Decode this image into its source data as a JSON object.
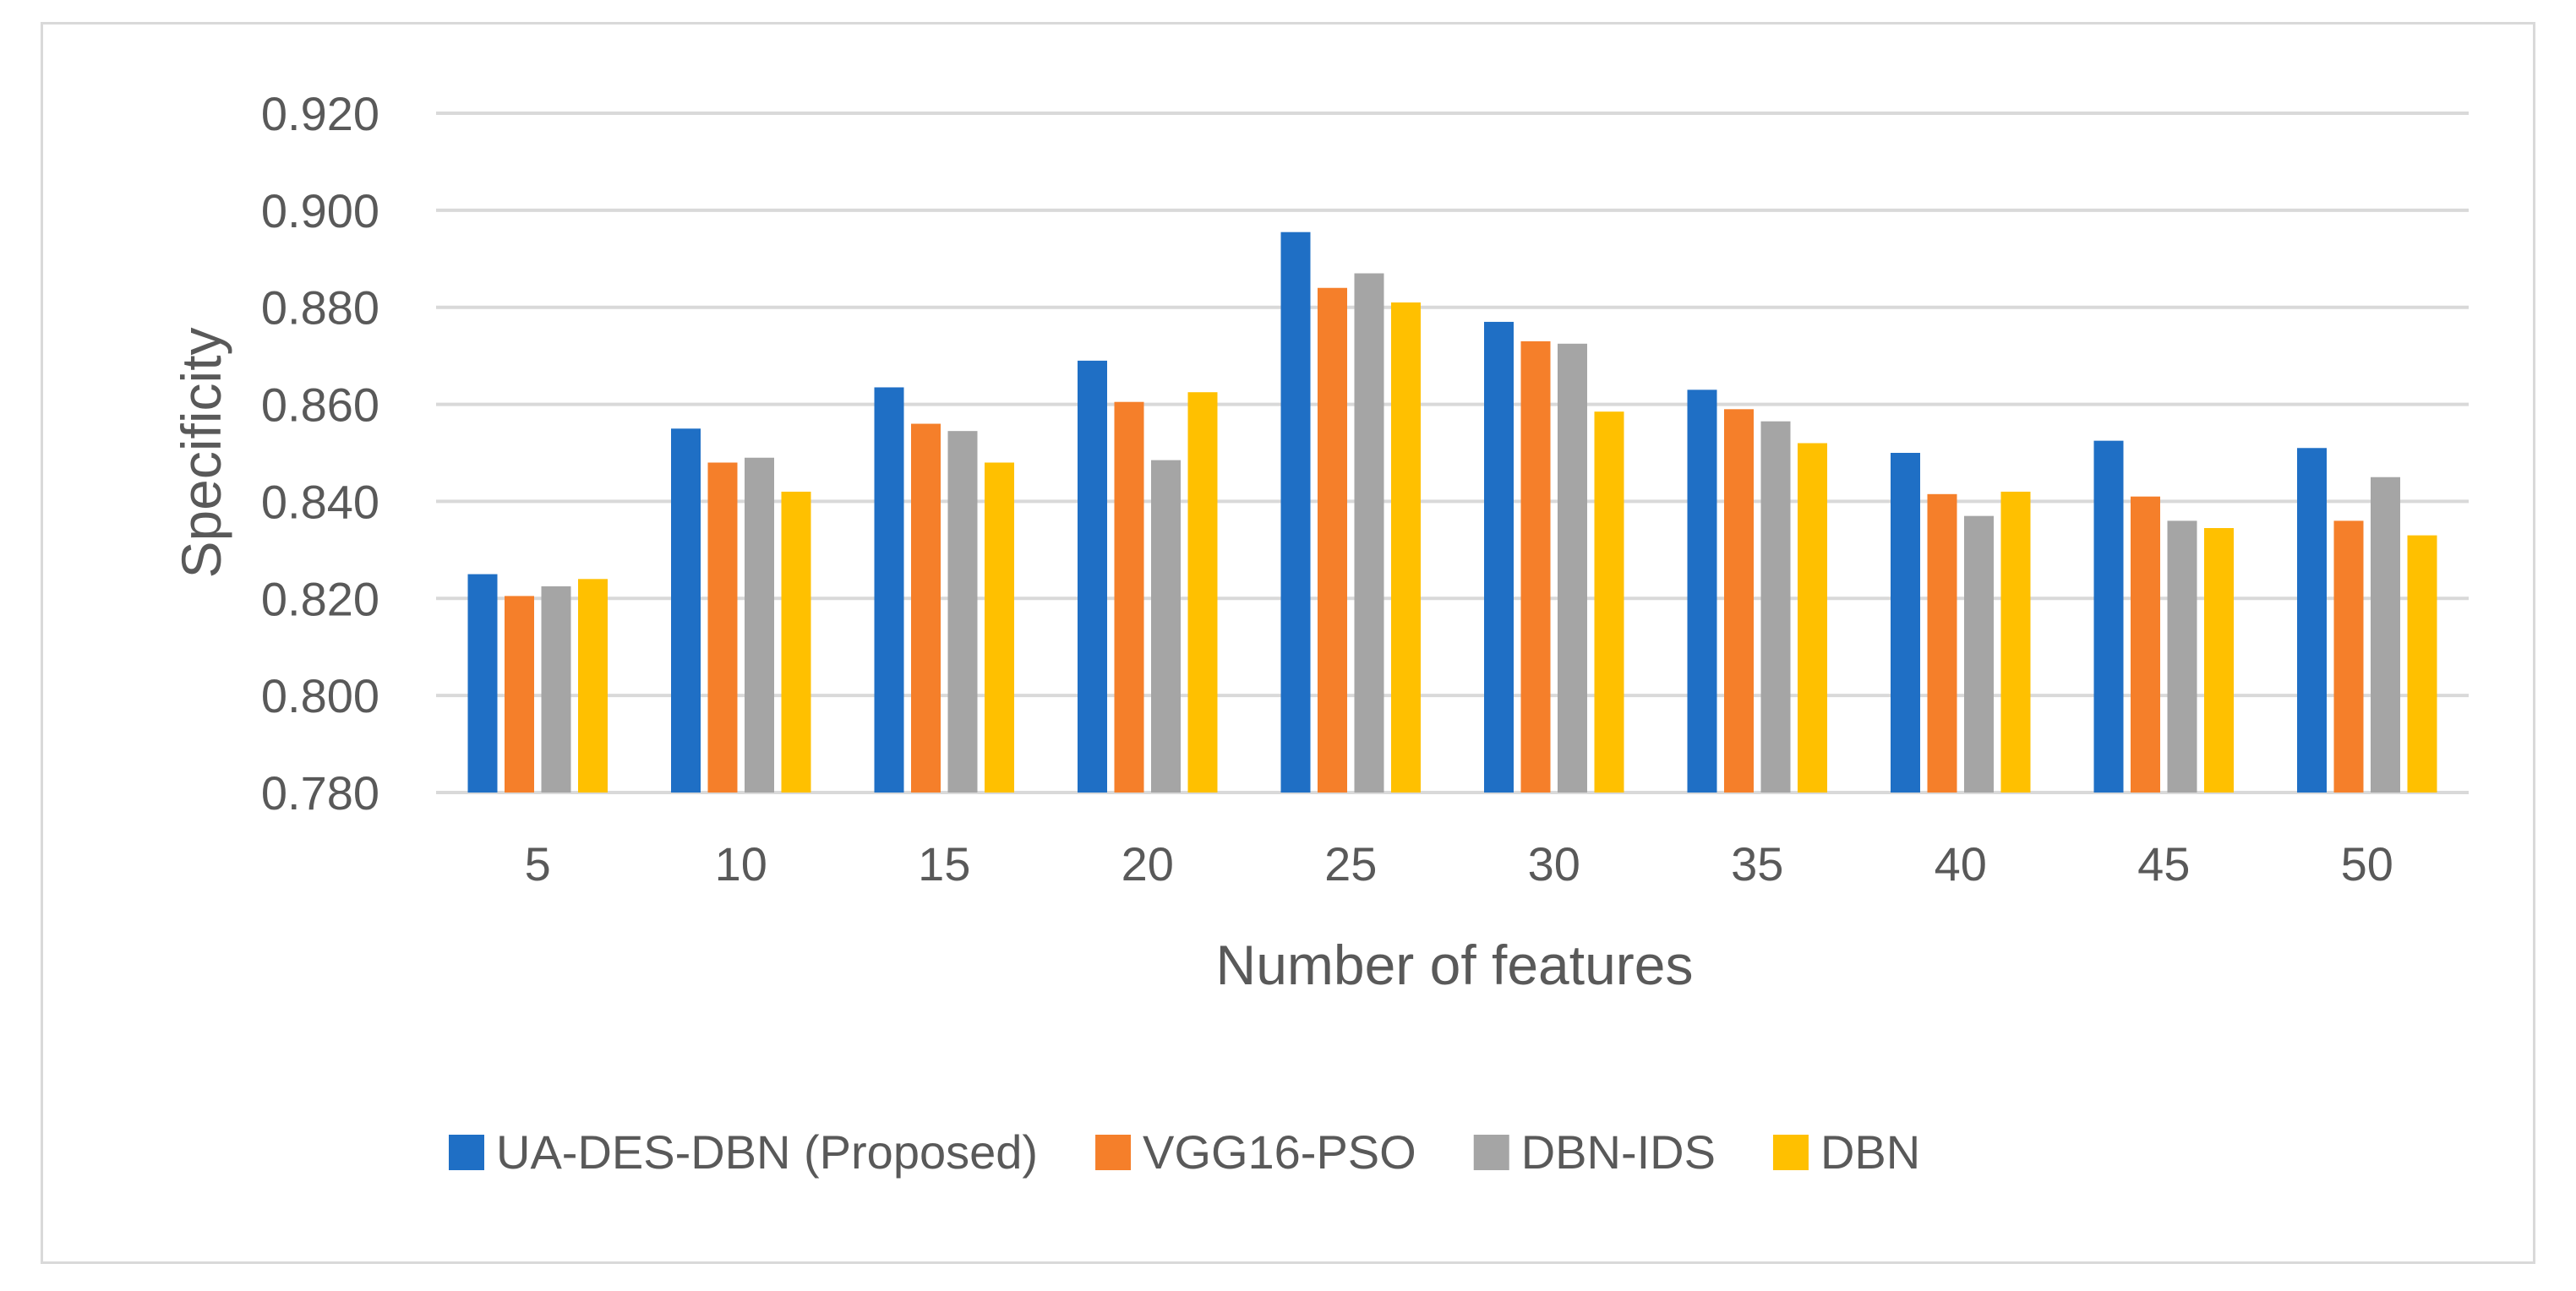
{
  "chart_data": {
    "type": "bar",
    "title": "",
    "xlabel": "Number of features",
    "ylabel": "Specificity",
    "categories": [
      "5",
      "10",
      "15",
      "20",
      "25",
      "30",
      "35",
      "40",
      "45",
      "50"
    ],
    "ylim": [
      0.78,
      0.92
    ],
    "yticks": [
      "0.780",
      "0.800",
      "0.820",
      "0.840",
      "0.860",
      "0.880",
      "0.900",
      "0.920"
    ],
    "grid": true,
    "legend_position": "bottom",
    "series": [
      {
        "name": "UA-DES-DBN (Proposed)",
        "color": "#1f6fc5",
        "values": [
          0.825,
          0.855,
          0.8635,
          0.869,
          0.8955,
          0.877,
          0.863,
          0.85,
          0.8525,
          0.851
        ]
      },
      {
        "name": "VGG16-PSO",
        "color": "#f57f2a",
        "values": [
          0.8205,
          0.848,
          0.856,
          0.8605,
          0.884,
          0.873,
          0.859,
          0.8415,
          0.841,
          0.836
        ]
      },
      {
        "name": "DBN-IDS",
        "color": "#a5a5a5",
        "values": [
          0.8225,
          0.849,
          0.8545,
          0.8485,
          0.887,
          0.8725,
          0.8565,
          0.837,
          0.836,
          0.845
        ]
      },
      {
        "name": "DBN",
        "color": "#ffc000",
        "values": [
          0.824,
          0.842,
          0.848,
          0.8625,
          0.881,
          0.8585,
          0.852,
          0.842,
          0.8345,
          0.833
        ]
      }
    ]
  }
}
